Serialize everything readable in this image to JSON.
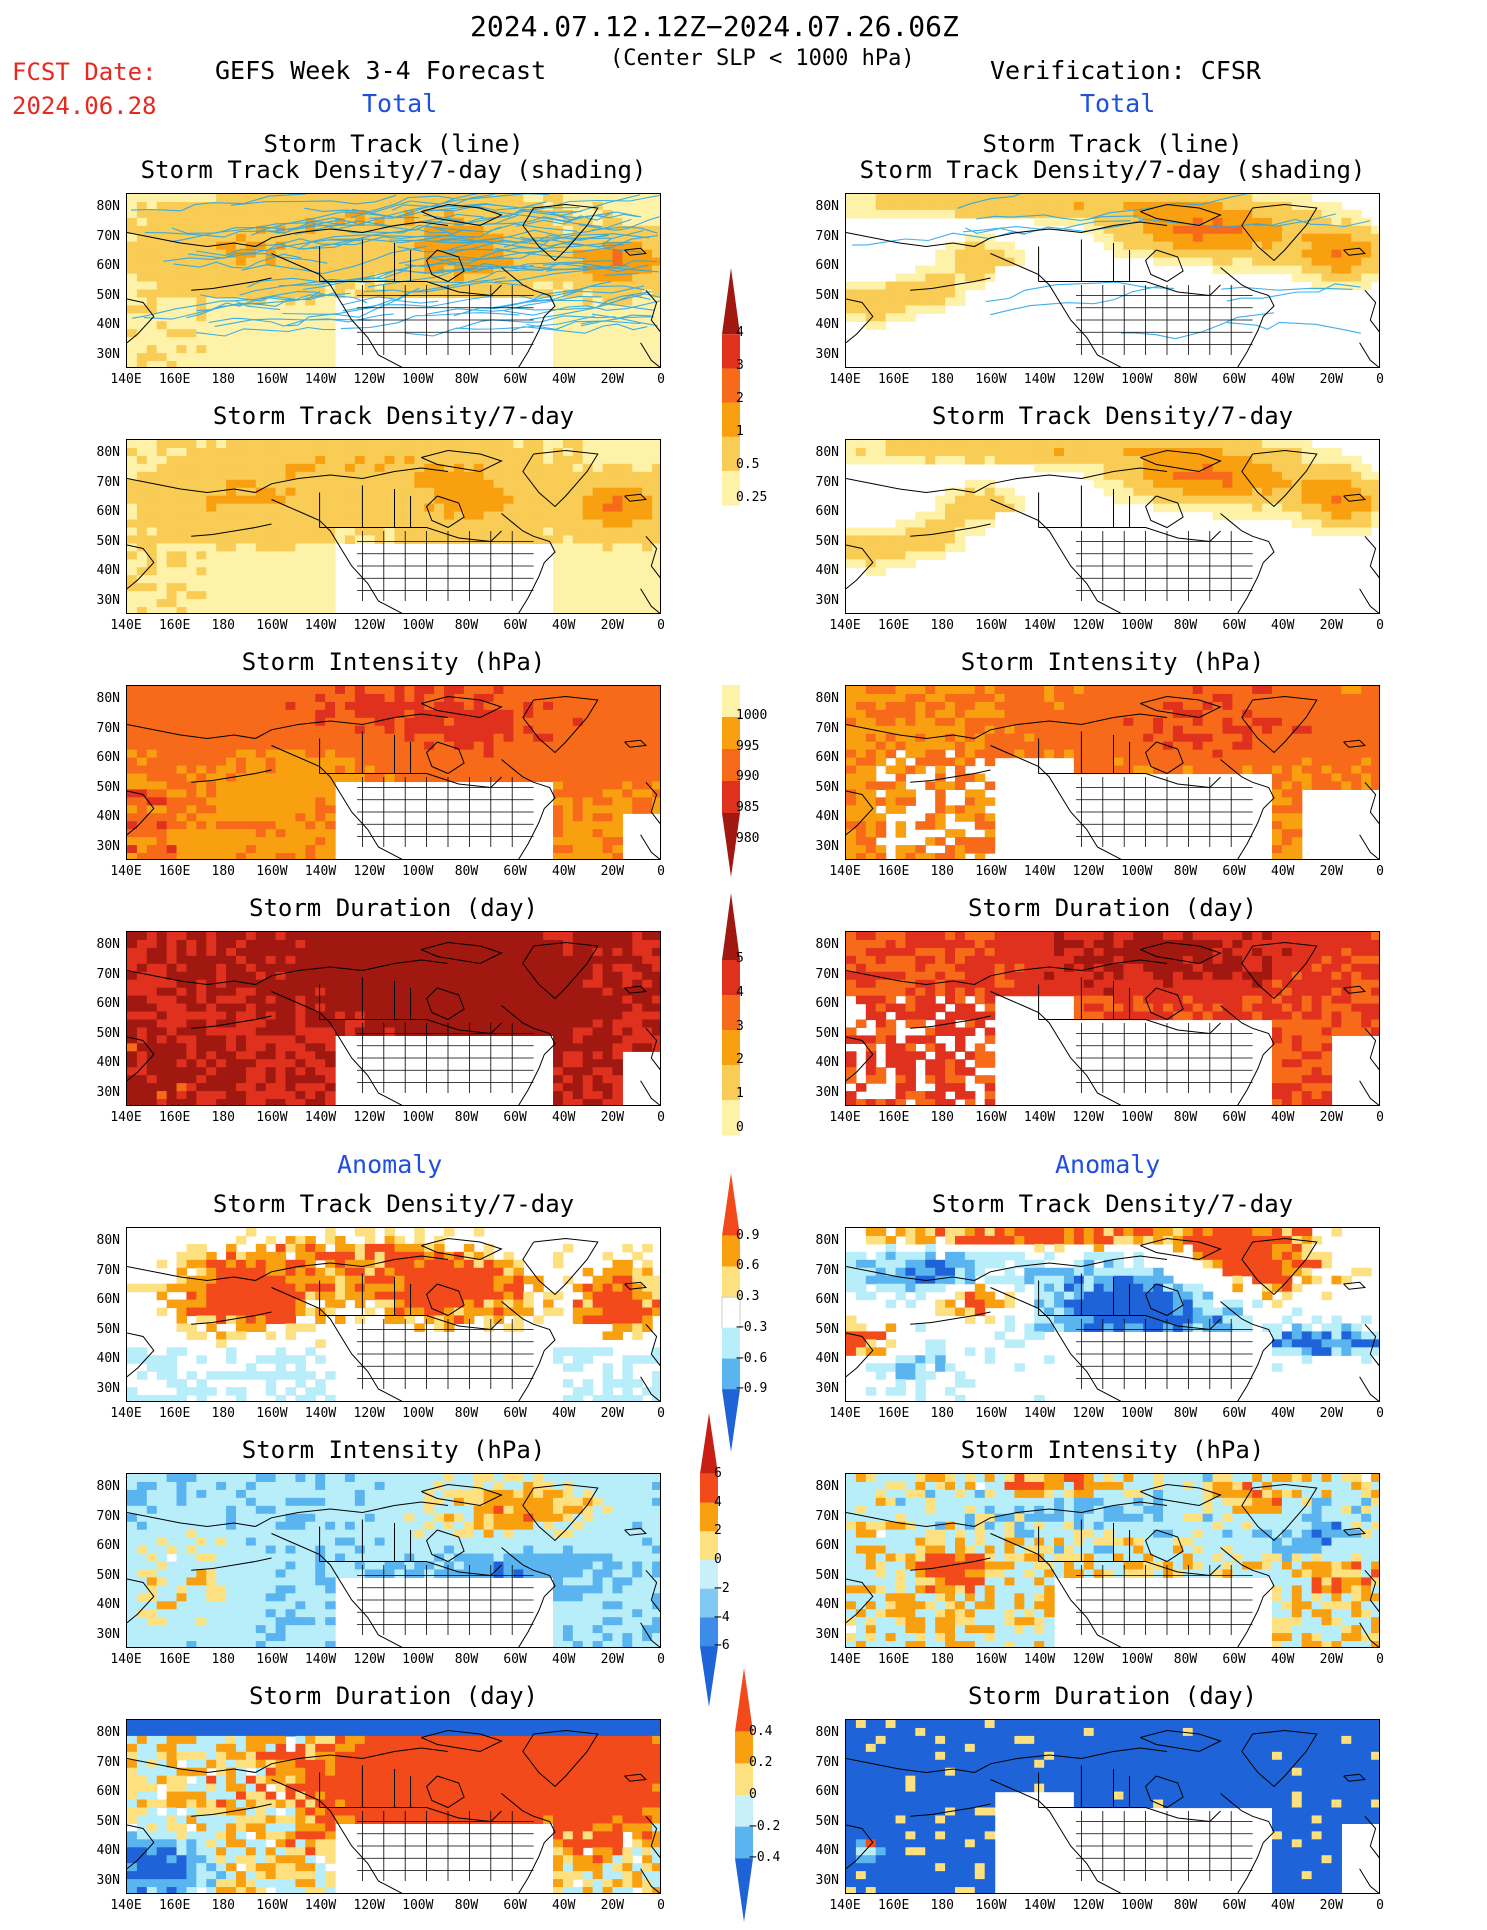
{
  "header": {
    "date_range": "2024.07.12.12Z−2024.07.26.06Z",
    "condition": "(Center SLP < 1000 hPa)",
    "fcst_label": "FCST Date:",
    "fcst_date": "2024.06.28",
    "forecast_title": "GEFS Week 3-4 Forecast",
    "verification_title": "Verification: CFSR",
    "total_left": "Total",
    "total_right": "Total",
    "anomaly_left": "Anomaly",
    "anomaly_right": "Anomaly"
  },
  "panel_titles": {
    "track_line": "Storm Track (line)",
    "track_shading": "Storm Track Density/7-day (shading)",
    "density": "Storm Track Density/7-day",
    "intensity": "Storm Intensity (hPa)",
    "duration": "Storm Duration (day)"
  },
  "axes": {
    "lat_labels": [
      "80N",
      "70N",
      "60N",
      "50N",
      "40N",
      "30N"
    ],
    "lon_labels": [
      "140E",
      "160E",
      "180",
      "160W",
      "140W",
      "120W",
      "100W",
      "80W",
      "60W",
      "40W",
      "20W",
      "0"
    ]
  },
  "colorbars": {
    "density_total": {
      "labels": [
        "4",
        "3",
        "2",
        "1",
        "0.5",
        "0.25"
      ],
      "colors": [
        "#a01810",
        "#e0301e",
        "#f76a1a",
        "#f8a010",
        "#f8cc55",
        "#fdf2a8"
      ]
    },
    "intensity_total": {
      "labels": [
        "1000",
        "995",
        "990",
        "985",
        "980"
      ],
      "colors": [
        "#fdf2a8",
        "#f8a010",
        "#f76a1a",
        "#e0301e",
        "#a01810"
      ]
    },
    "duration_total": {
      "labels": [
        "5",
        "4",
        "3",
        "2",
        "1",
        "0"
      ],
      "colors": [
        "#a01810",
        "#e0301e",
        "#f76a1a",
        "#f8a010",
        "#f8cc55",
        "#fdf2a8"
      ]
    },
    "density_anom": {
      "labels": [
        "0.9",
        "0.6",
        "0.3",
        "−0.3",
        "−0.6",
        "−0.9"
      ],
      "colors": [
        "#f24a1a",
        "#f8a010",
        "#fde080",
        "#ffffff",
        "#b8eefa",
        "#5ab4f0",
        "#1e64d8"
      ]
    },
    "intensity_anom": {
      "labels": [
        "6",
        "4",
        "2",
        "0",
        "−2",
        "−4",
        "−6"
      ],
      "colors": [
        "#c81e14",
        "#f24a1a",
        "#f8a010",
        "#fde080",
        "#c8f0fb",
        "#82c8f4",
        "#3c8ce8",
        "#1e64d8"
      ]
    },
    "duration_anom": {
      "labels": [
        "0.4",
        "0.2",
        "0",
        "−0.2",
        "−0.4"
      ],
      "colors": [
        "#f24a1a",
        "#f8a010",
        "#fde080",
        "#c8f0fb",
        "#5ab4f0",
        "#1e64d8"
      ]
    }
  },
  "panels": [
    {
      "title_key": "track_line",
      "title2_key": "track_shading",
      "variant": "track_fcst"
    },
    {
      "title_key": "track_line",
      "title2_key": "track_shading",
      "variant": "track_obs"
    },
    {
      "title_key": "density",
      "variant": "dens_fcst"
    },
    {
      "title_key": "density",
      "variant": "dens_obs"
    },
    {
      "title_key": "intensity",
      "variant": "int_fcst"
    },
    {
      "title_key": "intensity",
      "variant": "int_obs"
    },
    {
      "title_key": "duration",
      "variant": "dur_fcst"
    },
    {
      "title_key": "duration",
      "variant": "dur_obs"
    },
    {
      "title_key": "density",
      "variant": "adens_fcst"
    },
    {
      "title_key": "density",
      "variant": "adens_obs"
    },
    {
      "title_key": "intensity",
      "variant": "aint_fcst"
    },
    {
      "title_key": "intensity",
      "variant": "aint_obs"
    },
    {
      "title_key": "duration",
      "variant": "adur_fcst"
    },
    {
      "title_key": "duration",
      "variant": "adur_obs"
    }
  ]
}
